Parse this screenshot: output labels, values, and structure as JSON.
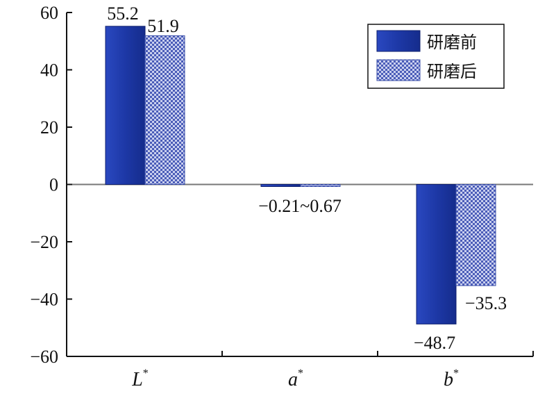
{
  "chart_data": {
    "type": "bar",
    "categories": [
      "L",
      "a",
      "b"
    ],
    "category_superscript": "*",
    "series": [
      {
        "name": "研磨前",
        "values": [
          55.2,
          -0.21,
          -48.7
        ],
        "color": "#1a36a8",
        "pattern": "solid"
      },
      {
        "name": "研磨后",
        "values": [
          51.9,
          -0.67,
          -35.3
        ],
        "color": "#5a6fc8",
        "pattern": "checkered"
      }
    ],
    "ylim": [
      -60,
      60
    ],
    "yticks": [
      "60",
      "40",
      "20",
      "0",
      "−20",
      "−40",
      "−60"
    ],
    "data_labels": [
      "55.2",
      "51.9",
      "−0.21~0.67",
      "−48.7",
      "−35.3"
    ],
    "legend_position": "top-right",
    "grid": false
  }
}
